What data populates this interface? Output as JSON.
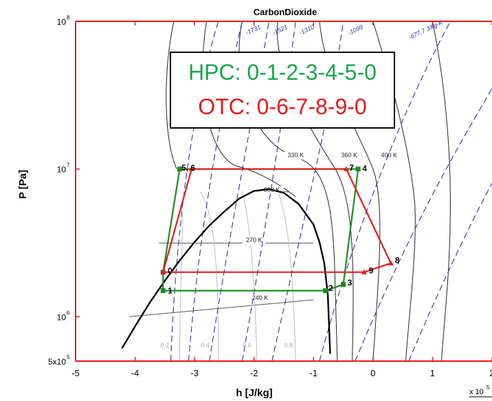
{
  "chart_data": {
    "type": "line",
    "title": "CarbonDioxide",
    "xlabel": "h [J/kg]",
    "ylabel": "P [Pa]",
    "x_multiplier_label": "x 10",
    "x_multiplier_exp": "5",
    "xlim": [
      -5,
      2
    ],
    "ylim": [
      500000,
      100000000
    ],
    "yscale": "log",
    "x_ticks": [
      {
        "value": -5,
        "label": "-5"
      },
      {
        "value": -4,
        "label": "-4"
      },
      {
        "value": -3,
        "label": "-3"
      },
      {
        "value": -2,
        "label": "-2"
      },
      {
        "value": -1,
        "label": "-1"
      },
      {
        "value": 0,
        "label": "0"
      },
      {
        "value": 1,
        "label": "1"
      },
      {
        "value": 2,
        "label": "2"
      }
    ],
    "y_ticks": [
      {
        "value": 100000000,
        "base": "10",
        "exp": "8"
      },
      {
        "value": 10000000,
        "base": "10",
        "exp": "7"
      },
      {
        "value": 1000000,
        "base": "10",
        "exp": "6"
      },
      {
        "value": 500000,
        "base": "5x10",
        "exp": "5"
      }
    ],
    "legend_box": {
      "lines": [
        {
          "text": "HPC: 0-1-2-3-4-5-0",
          "color": "#1aa64b"
        },
        {
          "text": "OTC: 0-6-7-8-9-0",
          "color": "#e81919"
        }
      ]
    },
    "series": [
      {
        "name": "HPC",
        "color": "#1a8c1a",
        "points": [
          {
            "label": "0",
            "x": -3.53,
            "y": 2000000
          },
          {
            "label": "1",
            "x": -3.53,
            "y": 1500000
          },
          {
            "label": "2",
            "x": -0.8,
            "y": 1500000
          },
          {
            "label": "3",
            "x": -0.5,
            "y": 1650000
          },
          {
            "label": "4",
            "x": -0.25,
            "y": 10000000
          },
          {
            "label": "5",
            "x": -3.25,
            "y": 10000000
          },
          {
            "label": "0",
            "x": -3.53,
            "y": 2000000
          }
        ]
      },
      {
        "name": "OTC",
        "color": "#e81919",
        "points": [
          {
            "label": "0",
            "x": -3.53,
            "y": 2000000
          },
          {
            "label": "6",
            "x": -3.05,
            "y": 10000000
          },
          {
            "label": "7",
            "x": -0.45,
            "y": 10000000
          },
          {
            "label": "8",
            "x": 0.3,
            "y": 2300000
          },
          {
            "label": "9",
            "x": -0.15,
            "y": 2000000
          },
          {
            "label": "0",
            "x": -3.53,
            "y": 2000000
          }
        ]
      }
    ],
    "point_labels": [
      {
        "text": "0",
        "x": -3.45,
        "y": 2050000
      },
      {
        "text": "1",
        "x": -3.45,
        "y": 1500000
      },
      {
        "text": "2",
        "x": -0.75,
        "y": 1560000
      },
      {
        "text": "3",
        "x": -0.43,
        "y": 1700000
      },
      {
        "text": "4",
        "x": -0.18,
        "y": 10100000
      },
      {
        "text": "5, 6",
        "x": -3.22,
        "y": 10200000
      },
      {
        "text": "7",
        "x": -0.4,
        "y": 10200000
      },
      {
        "text": "8",
        "x": 0.37,
        "y": 2400000
      },
      {
        "text": "9",
        "x": -0.07,
        "y": 2050000
      }
    ],
    "saturation_dome": {
      "x": [
        -4.22,
        -4.0,
        -3.75,
        -3.5,
        -3.25,
        -3.0,
        -2.75,
        -2.5,
        -2.25,
        -2.0,
        -1.75,
        -1.5,
        -1.25,
        -1.0,
        -0.9,
        -0.82,
        -0.76,
        -0.72
      ],
      "y": [
        610000,
        860000,
        1250000,
        1750000,
        2400000,
        3200000,
        4150000,
        5150000,
        6300000,
        7100000,
        7300000,
        6900000,
        5800000,
        4200000,
        3200000,
        2300000,
        1400000,
        560000
      ]
    },
    "isotherms": [
      {
        "label": "240 K",
        "label_x": -1.9,
        "label_y": 1300000
      },
      {
        "label": "270 K",
        "label_x": -2.0,
        "label_y": 3200000
      },
      {
        "label": "300 K",
        "label_x": -1.7,
        "label_y": 7000000
      },
      {
        "label": "330 K",
        "label_x": -1.3,
        "label_y": 12000000
      },
      {
        "label": "360 K",
        "label_x": -0.4,
        "label_y": 12000000
      },
      {
        "label": "400 K",
        "label_x": 0.27,
        "label_y": 12000000
      }
    ],
    "isentropes": [
      {
        "label": "-1731",
        "label_x": -2.0,
        "label_y": 85000000
      },
      {
        "label": "-1521",
        "label_x": -1.55,
        "label_y": 85000000
      },
      {
        "label": "-1310",
        "label_x": -1.1,
        "label_y": 85000000
      },
      {
        "label": "-1099",
        "label_x": -0.28,
        "label_y": 85000000
      },
      {
        "label": "-677.7 J/kg-K",
        "label_x": 0.9,
        "label_y": 85000000
      }
    ],
    "quality_lines": [
      {
        "label": "0.2",
        "label_x": -3.5,
        "label_y": 620000
      },
      {
        "label": "0.4",
        "label_x": -2.82,
        "label_y": 620000
      },
      {
        "label": "0.6",
        "label_x": -2.12,
        "label_y": 620000
      },
      {
        "label": "0.8",
        "label_x": -1.42,
        "label_y": 620000
      }
    ]
  }
}
